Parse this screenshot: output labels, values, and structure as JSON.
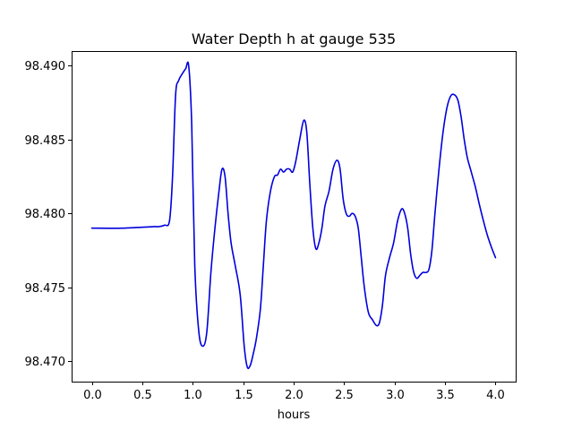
{
  "chart_data": {
    "type": "line",
    "title": "Water Depth h at gauge 535",
    "xlabel": "hours",
    "ylabel": "",
    "xlim": [
      -0.2,
      4.2
    ],
    "ylim": [
      98.4686,
      98.491
    ],
    "xticks": [
      0.0,
      0.5,
      1.0,
      1.5,
      2.0,
      2.5,
      3.0,
      3.5,
      4.0
    ],
    "xtick_labels": [
      "0.0",
      "0.5",
      "1.0",
      "1.5",
      "2.0",
      "2.5",
      "3.0",
      "3.5",
      "4.0"
    ],
    "yticks": [
      98.47,
      98.475,
      98.48,
      98.485,
      98.49
    ],
    "ytick_labels": [
      "98.470",
      "98.475",
      "98.480",
      "98.485",
      "98.490"
    ],
    "grid": false,
    "color": "#0000dd",
    "series": [
      {
        "x": [
          0.0,
          0.3,
          0.6,
          0.66,
          0.72,
          0.77,
          0.8,
          0.83,
          0.86,
          0.9,
          0.93,
          0.96,
          0.99,
          1.02,
          1.06,
          1.1,
          1.14,
          1.18,
          1.22,
          1.26,
          1.29,
          1.32,
          1.35,
          1.38,
          1.42,
          1.47,
          1.51,
          1.54,
          1.57,
          1.6,
          1.63,
          1.67,
          1.7,
          1.73,
          1.77,
          1.81,
          1.84,
          1.87,
          1.9,
          1.93,
          1.96,
          1.99,
          2.02,
          2.06,
          2.1,
          2.13,
          2.16,
          2.19,
          2.22,
          2.25,
          2.28,
          2.31,
          2.35,
          2.39,
          2.43,
          2.46,
          2.49,
          2.52,
          2.55,
          2.58,
          2.61,
          2.64,
          2.67,
          2.7,
          2.74,
          2.78,
          2.82,
          2.85,
          2.88,
          2.91,
          2.95,
          2.99,
          3.03,
          3.07,
          3.1,
          3.13,
          3.16,
          3.19,
          3.22,
          3.25,
          3.28,
          3.31,
          3.34,
          3.37,
          3.4,
          3.44,
          3.48,
          3.52,
          3.56,
          3.6,
          3.63,
          3.66,
          3.69,
          3.72,
          3.76,
          3.8,
          3.84,
          3.88,
          3.92,
          3.96,
          4.0
        ],
        "y": [
          98.479,
          98.479,
          98.4791,
          98.4791,
          98.4792,
          98.4795,
          98.4825,
          98.488,
          98.489,
          98.4895,
          98.4898,
          98.49,
          98.486,
          98.4765,
          98.472,
          98.471,
          98.472,
          98.476,
          98.479,
          98.4815,
          98.483,
          98.4825,
          98.48,
          98.478,
          98.4765,
          98.4745,
          98.471,
          98.4696,
          98.4697,
          98.4705,
          98.4715,
          98.4735,
          98.4765,
          98.4795,
          98.4815,
          98.4825,
          98.4826,
          98.483,
          98.4828,
          98.483,
          98.483,
          98.4828,
          98.4835,
          98.485,
          98.4863,
          98.4855,
          98.482,
          98.479,
          98.4776,
          98.478,
          98.479,
          98.4805,
          98.4815,
          98.483,
          98.4836,
          98.483,
          98.481,
          98.48,
          98.4798,
          98.48,
          98.4798,
          98.479,
          98.477,
          98.475,
          98.4733,
          98.4728,
          98.4724,
          98.4726,
          98.4738,
          98.4758,
          98.477,
          98.478,
          98.4795,
          98.4803,
          98.48,
          98.479,
          98.4772,
          98.476,
          98.4756,
          98.4758,
          98.476,
          98.476,
          98.4762,
          98.4775,
          98.48,
          98.483,
          98.4855,
          98.4872,
          98.488,
          98.488,
          98.4876,
          98.4865,
          98.485,
          98.4838,
          98.4828,
          98.4818,
          98.4806,
          98.4795,
          98.4785,
          98.4777,
          98.477
        ]
      }
    ]
  }
}
